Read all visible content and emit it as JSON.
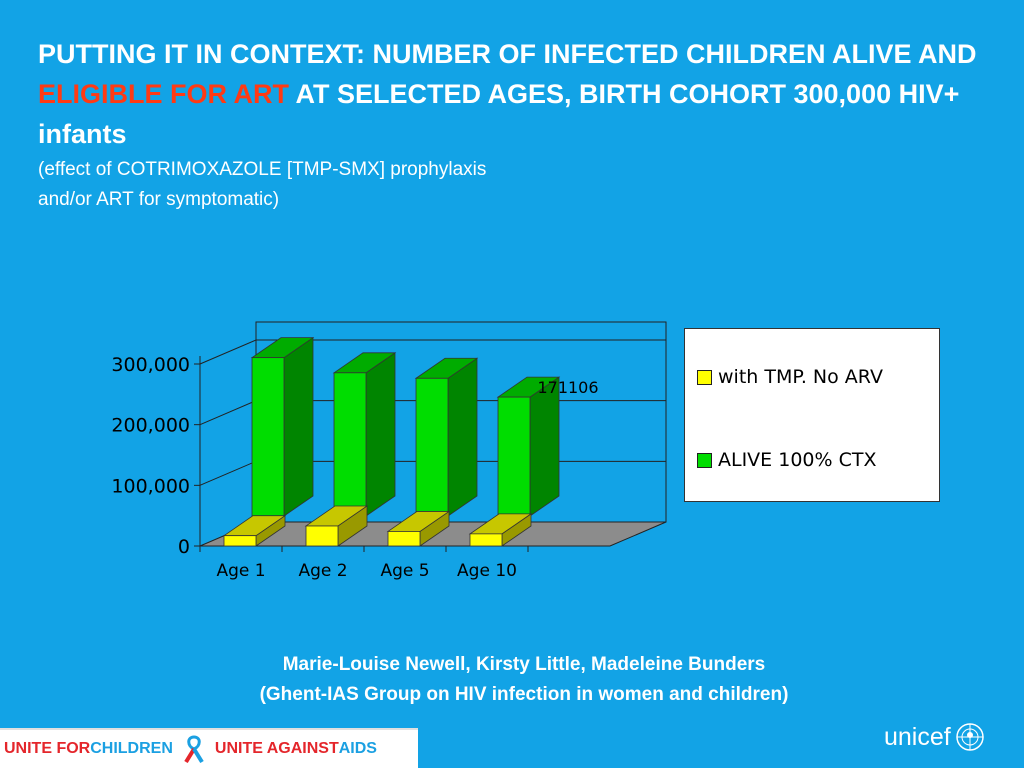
{
  "title": {
    "part1": "PUTTING IT IN CONTEXT: NUMBER OF INFECTED CHILDREN ALIVE AND ",
    "highlight": "ELIGIBLE FOR ART",
    "part2": " AT SELECTED AGES, BIRTH COHORT 300,000 HIV+ infants"
  },
  "subtitle": {
    "line1": "(effect of COTRIMOXAZOLE [TMP-SMX] prophylaxis",
    "line2": "and/or ART for symptomatic)"
  },
  "chart_data": {
    "type": "bar",
    "title": "",
    "xlabel": "",
    "ylabel": "",
    "categories": [
      "Age 1",
      "Age 2",
      "Age 5",
      "Age 10"
    ],
    "series": [
      {
        "name": "with TMP. No ARV",
        "color": "#ffff00",
        "values": [
          17000,
          33000,
          24000,
          20000
        ]
      },
      {
        "name": "ALIVE 100% CTX",
        "color": "#00dd00",
        "values": [
          261000,
          236000,
          227000,
          196000
        ]
      }
    ],
    "annotation": "171106",
    "ylim": [
      0,
      300000
    ],
    "yticks": [
      "0",
      "100,000",
      "200,000",
      "300,000"
    ],
    "grid": true,
    "legend_position": "right"
  },
  "credits": {
    "line1": "Marie-Louise Newell, Kirsty Little, Madeleine Bunders",
    "line2": "(Ghent-IAS Group on HIV infection in women and children)"
  },
  "footer": {
    "unite": "UNITE FOR ",
    "children": "CHILDREN",
    "unite_against": "UNITE AGAINST ",
    "aids": "AIDS",
    "logo_text": "unicef"
  }
}
